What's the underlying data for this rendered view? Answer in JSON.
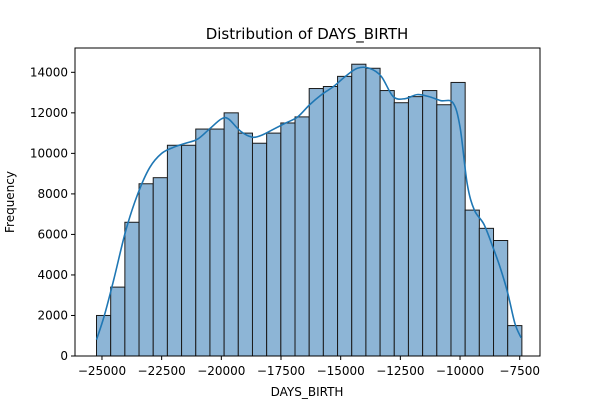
{
  "chart_data": {
    "type": "bar",
    "title": "Distribution of DAYS_BIRTH",
    "xlabel": "DAYS_BIRTH",
    "ylabel": "Frequency",
    "xlim": [
      -26130,
      -6650
    ],
    "ylim": [
      0,
      15200
    ],
    "xticks": [
      -25000,
      -22500,
      -20000,
      -17500,
      -15000,
      -12500,
      -10000,
      -7500
    ],
    "xtick_labels": [
      "−25000",
      "−22500",
      "−20000",
      "−17500",
      "−15000",
      "−12500",
      "−10000",
      "−7500"
    ],
    "yticks": [
      0,
      2000,
      4000,
      6000,
      8000,
      10000,
      12000,
      14000
    ],
    "ytick_labels": [
      "0",
      "2000",
      "4000",
      "6000",
      "8000",
      "10000",
      "12000",
      "14000"
    ],
    "bin_start": -25229,
    "bin_width": 594,
    "values": [
      2000,
      3400,
      6600,
      8500,
      8800,
      10400,
      10400,
      11200,
      11200,
      12000,
      11000,
      10500,
      11000,
      11500,
      11800,
      13200,
      13300,
      13800,
      14400,
      14200,
      13100,
      12500,
      12800,
      13100,
      12400,
      13500,
      7200,
      6300,
      5700,
      1500
    ],
    "kde": {
      "x": [
        -25230,
        -24900,
        -24500,
        -24000,
        -23500,
        -23000,
        -22500,
        -22000,
        -21500,
        -21000,
        -20500,
        -20000,
        -19700,
        -19200,
        -18700,
        -18300,
        -17800,
        -17300,
        -16800,
        -16300,
        -15800,
        -15300,
        -14800,
        -14300,
        -13800,
        -13300,
        -12800,
        -12300,
        -11800,
        -11300,
        -10800,
        -10300,
        -10000,
        -9700,
        -9400,
        -9000,
        -8600,
        -8300,
        -8000,
        -7700,
        -7440
      ],
      "y": [
        800,
        2000,
        3800,
        6200,
        8000,
        9300,
        10000,
        10300,
        10500,
        10700,
        11200,
        11700,
        11700,
        11100,
        10800,
        10900,
        11200,
        11500,
        11800,
        12400,
        12900,
        13300,
        13800,
        14200,
        14200,
        13800,
        12800,
        12700,
        12900,
        12800,
        12600,
        12500,
        11300,
        8500,
        7200,
        6500,
        5300,
        4300,
        3100,
        1600,
        900
      ]
    },
    "colors": {
      "bar_fill": "#8DB5D6",
      "bar_edge": "#1A1A1A",
      "kde_line": "#1F77B4"
    },
    "grid": false,
    "legend": "none"
  }
}
